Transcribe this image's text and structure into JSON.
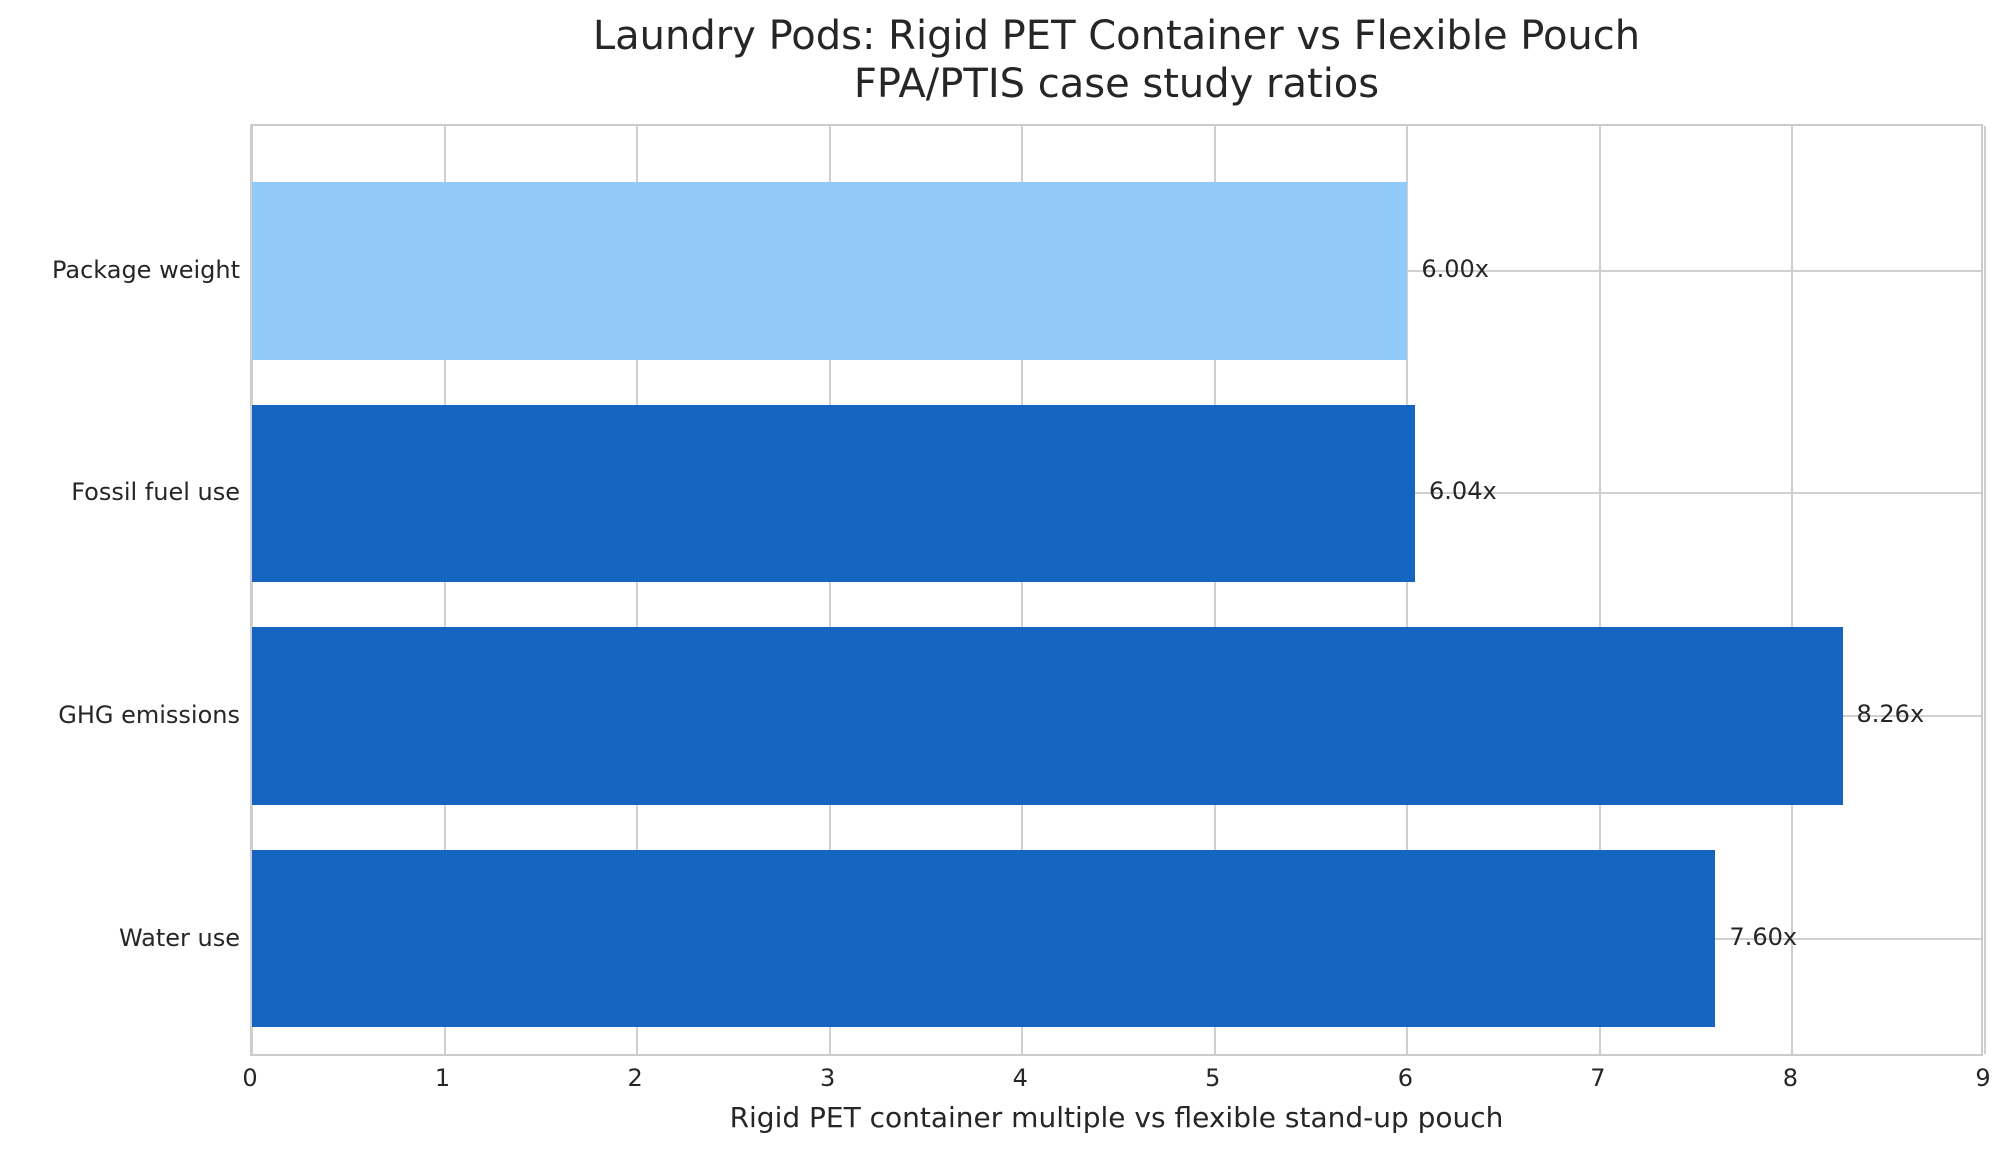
{
  "chart_data": {
    "type": "bar",
    "orientation": "horizontal",
    "title": "Laundry Pods: Rigid PET Container vs Flexible Pouch",
    "subtitle": "FPA/PTIS case study ratios",
    "xlabel": "Rigid PET container multiple vs flexible stand-up pouch",
    "ylabel": "",
    "xlim": [
      0,
      9
    ],
    "xticks": [
      "0",
      "1",
      "2",
      "3",
      "4",
      "5",
      "6",
      "7",
      "8",
      "9"
    ],
    "grid": true,
    "legend": null,
    "categories": [
      "Package weight",
      "Fossil fuel use",
      "GHG emissions",
      "Water use"
    ],
    "values": [
      6.0,
      6.04,
      8.26,
      7.6
    ],
    "value_labels": [
      "6.00x",
      "6.04x",
      "8.26x",
      "7.60x"
    ],
    "colors": [
      "#90caf9",
      "#1565c0",
      "#1565c0",
      "#1565c0"
    ]
  }
}
